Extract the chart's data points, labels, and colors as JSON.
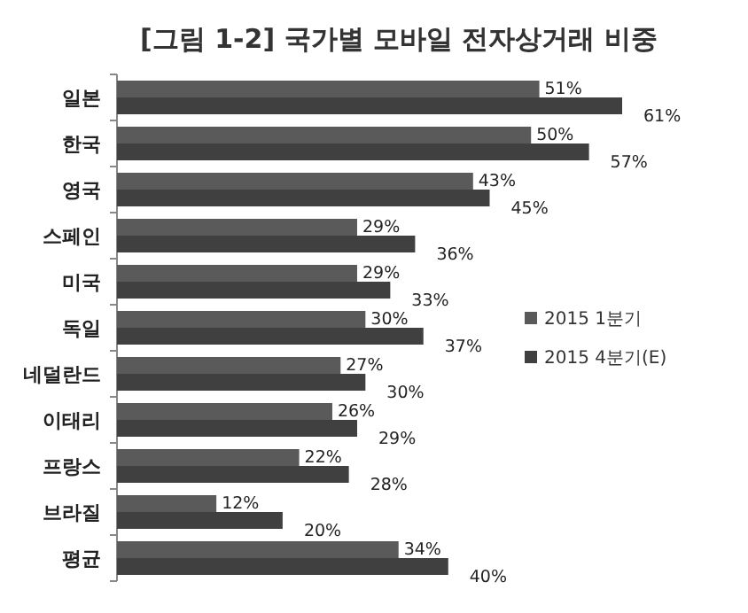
{
  "chart_data": {
    "type": "bar",
    "orientation": "horizontal",
    "title": "[그림 1-2] 국가별 모바일 전자상거래 비중",
    "categories": [
      "일본",
      "한국",
      "영국",
      "스페인",
      "미국",
      "독일",
      "네덜란드",
      "이태리",
      "프랑스",
      "브라질",
      "평균"
    ],
    "series": [
      {
        "name": "2015 1분기",
        "color": "#5a5a5a",
        "values": [
          51,
          50,
          43,
          29,
          29,
          30,
          27,
          26,
          22,
          12,
          34
        ],
        "value_labels": [
          "51%",
          "50%",
          "43%",
          "29%",
          "29%",
          "30%",
          "27%",
          "26%",
          "22%",
          "12%",
          "34%"
        ]
      },
      {
        "name": "2015 4분기(E)",
        "color": "#404040",
        "values": [
          61,
          57,
          45,
          36,
          33,
          37,
          30,
          29,
          28,
          20,
          40
        ],
        "value_labels": [
          "61%",
          "57%",
          "45%",
          "36%",
          "33%",
          "37%",
          "30%",
          "29%",
          "28%",
          "20%",
          "40%"
        ]
      }
    ],
    "legend": "right"
  }
}
